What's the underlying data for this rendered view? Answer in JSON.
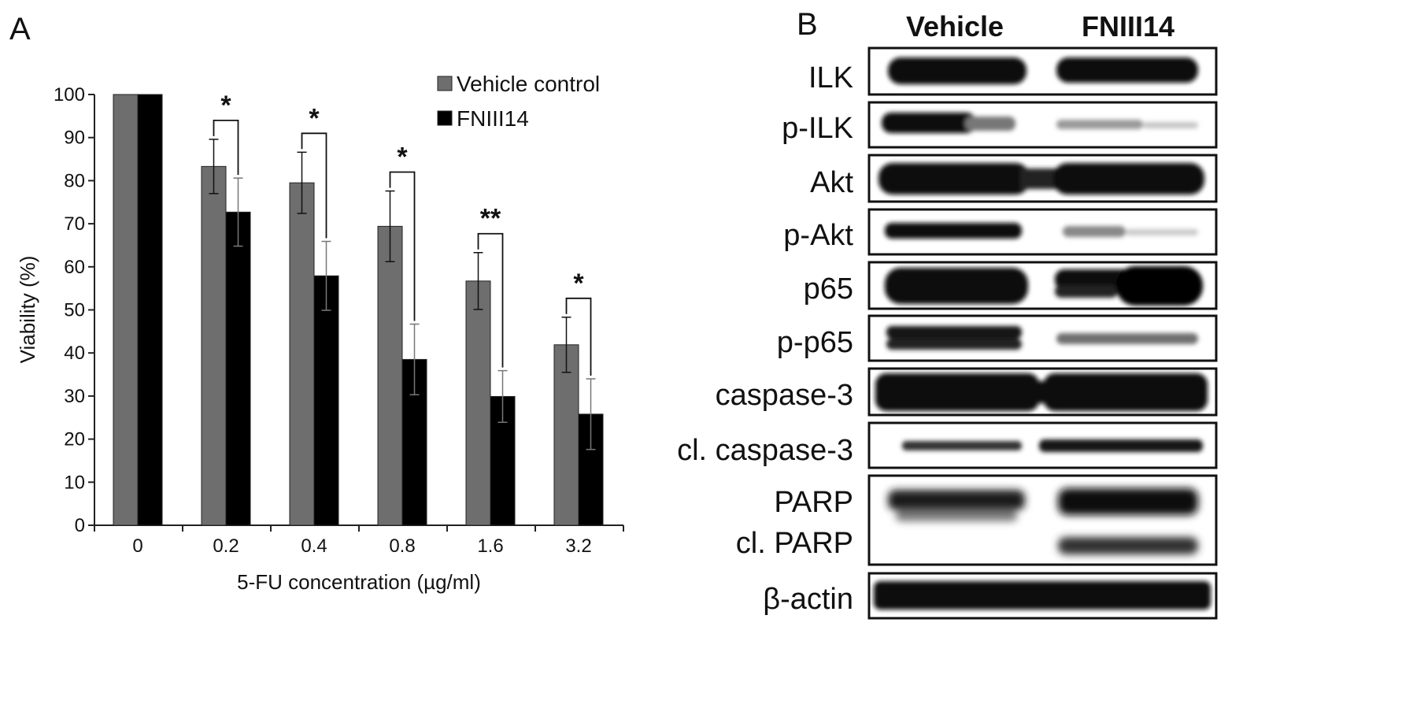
{
  "panel_a_letter": "A",
  "panel_b_letter": "B",
  "chart_data": {
    "type": "bar",
    "categories": [
      "0",
      "0.2",
      "0.4",
      "0.8",
      "1.6",
      "3.2"
    ],
    "series": [
      {
        "name": "Vehicle control",
        "color": "#6e6e6e",
        "values": [
          100,
          83.3,
          79.5,
          69.4,
          56.7,
          41.9
        ],
        "errors": [
          0,
          6.3,
          7.1,
          8.2,
          6.6,
          6.4
        ]
      },
      {
        "name": "FNIII14",
        "color": "#000000",
        "values": [
          100,
          72.7,
          57.9,
          38.5,
          29.9,
          25.8
        ],
        "errors": [
          0,
          7.9,
          8.0,
          8.2,
          6.0,
          8.2
        ]
      }
    ],
    "significance": [
      "",
      "*",
      "*",
      "*",
      "**",
      "*"
    ],
    "xlabel": "5-FU concentration (µg/ml)",
    "ylabel": "Viability (%)",
    "ylim": [
      0,
      100
    ],
    "yticks": [
      "0",
      "10",
      "20",
      "30",
      "40",
      "50",
      "60",
      "70",
      "80",
      "90",
      "100"
    ],
    "grid": false,
    "legend_position": "top-right"
  },
  "blot": {
    "columns": [
      "Vehicle",
      "FNIII14"
    ],
    "rows": [
      {
        "label": "ILK"
      },
      {
        "label": "p-ILK"
      },
      {
        "label": "Akt"
      },
      {
        "label": "p-Akt"
      },
      {
        "label": "p65"
      },
      {
        "label": "p-p65"
      },
      {
        "label": "caspase-3"
      },
      {
        "label": "cl. caspase-3"
      },
      {
        "label": "PARP",
        "sublabel": "cl. PARP"
      },
      {
        "label": "β-actin"
      }
    ]
  }
}
